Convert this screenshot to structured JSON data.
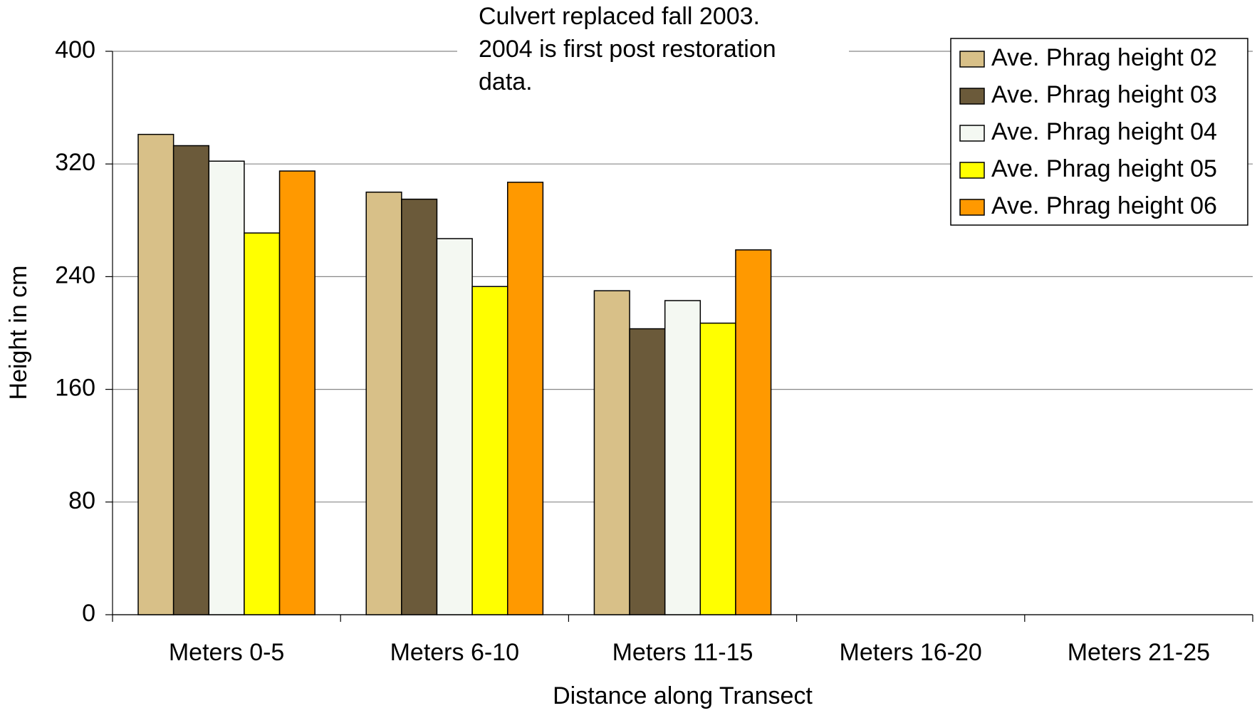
{
  "chart_data": {
    "type": "bar",
    "annotation": [
      "Culvert replaced fall 2003.",
      "2004 is first post restoration",
      "data."
    ],
    "ylabel": "Height in cm",
    "xlabel": "Distance along Transect",
    "categories": [
      "Meters 0-5",
      "Meters 6-10",
      "Meters 11-15",
      "Meters 16-20",
      "Meters 21-25"
    ],
    "series": [
      {
        "name": "Ave. Phrag height 02",
        "color": "#d8c088",
        "values": [
          341,
          300,
          230,
          null,
          null
        ]
      },
      {
        "name": "Ave. Phrag height 03",
        "color": "#6b5a3a",
        "values": [
          333,
          295,
          203,
          null,
          null
        ]
      },
      {
        "name": "Ave. Phrag height 04",
        "color": "#f4f8f2",
        "values": [
          322,
          267,
          223,
          null,
          null
        ]
      },
      {
        "name": "Ave. Phrag height 05",
        "color": "#ffff00",
        "values": [
          271,
          233,
          207,
          null,
          null
        ]
      },
      {
        "name": "Ave. Phrag height 06",
        "color": "#ff9900",
        "values": [
          315,
          307,
          259,
          null,
          null
        ]
      }
    ],
    "ylim": [
      0,
      400
    ],
    "yticks": [
      0,
      80,
      160,
      240,
      320,
      400
    ],
    "grid": true,
    "legend": "top-right"
  }
}
